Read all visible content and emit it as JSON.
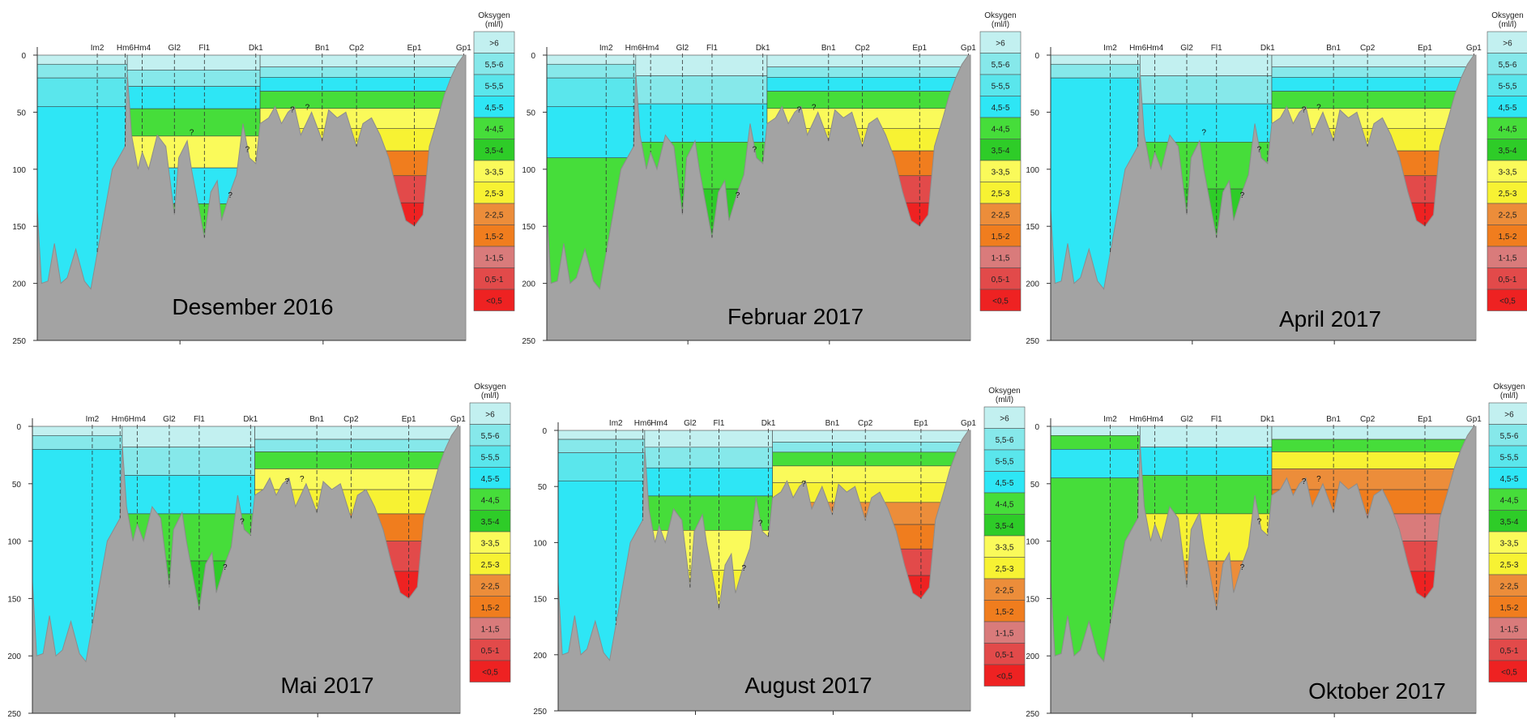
{
  "legend": {
    "title": "Oksygen",
    "unit": "(ml/l)",
    "classes": [
      {
        "label": ">6",
        "color": "#c2f0f0"
      },
      {
        "label": "5,5-6",
        "color": "#86e8ea"
      },
      {
        "label": "5-5,5",
        "color": "#5ae6ec"
      },
      {
        "label": "4,5-5",
        "color": "#2ee6f5"
      },
      {
        "label": "4-4,5",
        "color": "#46dd3a"
      },
      {
        "label": "3,5-4",
        "color": "#2ecc28"
      },
      {
        "label": "3-3,5",
        "color": "#fafa5a"
      },
      {
        "label": "2,5-3",
        "color": "#f7f233"
      },
      {
        "label": "2-2,5",
        "color": "#ec8d3a"
      },
      {
        "label": "1,5-2",
        "color": "#f07d1e"
      },
      {
        "label": "1-1,5",
        "color": "#d97b7b"
      },
      {
        "label": "0,5-1",
        "color": "#e24a4a"
      },
      {
        "label": "<0,5",
        "color": "#ee2222"
      }
    ]
  },
  "stations": [
    "Im2",
    "Hm6",
    "Hm4",
    "Gl2",
    "Fl1",
    "Dk1",
    "Bn1",
    "Cp2",
    "Ep1",
    "Gp1"
  ],
  "colors": {
    "terrain": "#a3a3a3",
    "axis": "#333333",
    "contour": "#333333"
  },
  "chart_data": [
    {
      "type": "heatmap",
      "title": "Desember 2016",
      "ylim": [
        250,
        0
      ],
      "yticks": [
        0,
        50,
        100,
        150,
        200,
        250
      ],
      "layers": [
        {
          "section": "Im2",
          "classes": [
            ">6",
            "5,5-6",
            "5-5,5",
            "4,5-5"
          ]
        },
        {
          "section": "Hm4-Dk1",
          "classes": [
            ">6",
            "5,5-6",
            "4,5-5",
            "4-4,5",
            "3-3,5",
            "4,5-5",
            "4-4,5"
          ]
        },
        {
          "section": "Dk1-Ep1",
          "classes": [
            ">6",
            "5,5-6",
            "4,5-5",
            "4-4,5",
            "3-3,5",
            "2,5-3",
            "1,5-2",
            "0,5-1",
            "<0,5"
          ]
        }
      ],
      "bottom_depth": {
        "Im2": 205,
        "Hm4": 95,
        "Gl2": 140,
        "Fl1": 160,
        "Dk1": 95,
        "Bn1": 75,
        "Cp2": 80,
        "Ep1": 150
      },
      "annotations": [
        "?",
        "?",
        "?",
        "?",
        "?"
      ]
    },
    {
      "type": "heatmap",
      "title": "Februar 2017",
      "ylim": [
        250,
        0
      ],
      "yticks": [
        0,
        50,
        100,
        150,
        200,
        250
      ],
      "layers": [
        {
          "section": "Im2",
          "classes": [
            ">6",
            "5,5-6",
            "5-5,5",
            "4,5-5",
            "4-4,5"
          ]
        },
        {
          "section": "Hm4-Dk1",
          "classes": [
            ">6",
            "5,5-6",
            "4,5-5",
            "4-4,5",
            "3,5-4"
          ]
        },
        {
          "section": "Dk1-Ep1",
          "classes": [
            ">6",
            "5,5-6",
            "4,5-5",
            "4-4,5",
            "3-3,5",
            "2,5-3",
            "1,5-2",
            "0,5-1",
            "<0,5"
          ]
        }
      ],
      "bottom_depth": {
        "Im2": 205,
        "Hm4": 100,
        "Gl2": 140,
        "Fl1": 160,
        "Dk1": 95,
        "Bn1": 75,
        "Cp2": 80,
        "Ep1": 150
      },
      "annotations": [
        "?",
        "?",
        "?",
        "?"
      ]
    },
    {
      "type": "heatmap",
      "title": "April 2017",
      "ylim": [
        250,
        0
      ],
      "yticks": [
        0,
        50,
        100,
        150,
        200,
        250
      ],
      "layers": [
        {
          "section": "Im2",
          "classes": [
            ">6",
            "5,5-6",
            "4,5-5"
          ]
        },
        {
          "section": "Hm4-Dk1",
          "classes": [
            ">6",
            "5,5-6",
            "4,5-5",
            "4-4,5",
            "3,5-4"
          ]
        },
        {
          "section": "Dk1-Ep1",
          "classes": [
            ">6",
            "5,5-6",
            "4,5-5",
            "4-4,5",
            "3-3,5",
            "2,5-3",
            "1,5-2",
            "0,5-1",
            "<0,5"
          ]
        }
      ],
      "bottom_depth": {
        "Im2": 205,
        "Hm4": 100,
        "Gl2": 140,
        "Fl1": 160,
        "Dk1": 95,
        "Bn1": 75,
        "Cp2": 80,
        "Ep1": 150
      },
      "annotations": [
        "?",
        "?",
        "?",
        "?",
        "?"
      ]
    },
    {
      "type": "heatmap",
      "title": "Mai 2017",
      "ylim": [
        250,
        0
      ],
      "yticks": [
        0,
        50,
        100,
        150,
        200,
        250
      ],
      "layers": [
        {
          "section": "Im2",
          "classes": [
            ">6",
            "5,5-6",
            "4,5-5"
          ]
        },
        {
          "section": "Hm4-Dk1",
          "classes": [
            ">6",
            "5,5-6",
            "4,5-5",
            "4-4,5",
            "3,5-4"
          ]
        },
        {
          "section": "Dk1-Ep1",
          "classes": [
            ">6",
            "5,5-6",
            "4-4,5",
            "3-3,5",
            "2,5-3",
            "1,5-2",
            "0,5-1",
            "<0,5"
          ]
        }
      ],
      "bottom_depth": {
        "Im2": 205,
        "Hm4": 100,
        "Gl2": 140,
        "Fl1": 160,
        "Dk1": 95,
        "Bn1": 75,
        "Cp2": 80,
        "Ep1": 150
      },
      "annotations": [
        "?",
        "?",
        "?",
        "?"
      ]
    },
    {
      "type": "heatmap",
      "title": "August 2017",
      "ylim": [
        250,
        0
      ],
      "yticks": [
        0,
        50,
        100,
        150,
        200,
        250
      ],
      "layers": [
        {
          "section": "Im2",
          "classes": [
            ">6",
            "5,5-6",
            "5-5,5",
            "4,5-5"
          ]
        },
        {
          "section": "Hm4-Dk1",
          "classes": [
            ">6",
            "5,5-6",
            "4,5-5",
            "4-4,5",
            "3-3,5",
            "2,5-3"
          ]
        },
        {
          "section": "Dk1-Ep1",
          "classes": [
            ">6",
            "5,5-6",
            "4-4,5",
            "3-3,5",
            "2,5-3",
            "2-2,5",
            "1,5-2",
            "0,5-1",
            "<0,5"
          ]
        }
      ],
      "bottom_depth": {
        "Im2": 205,
        "Hm4": 100,
        "Gl2": 140,
        "Fl1": 160,
        "Dk1": 95,
        "Bn1": 75,
        "Cp2": 80,
        "Ep1": 150
      },
      "annotations": [
        "?",
        "?",
        "?"
      ]
    },
    {
      "type": "heatmap",
      "title": "Oktober 2017",
      "ylim": [
        250,
        0
      ],
      "yticks": [
        0,
        50,
        100,
        150,
        200,
        250
      ],
      "layers": [
        {
          "section": "Im2",
          "classes": [
            ">6",
            "4-4,5",
            "4,5-5",
            "4-4,5"
          ]
        },
        {
          "section": "Hm4-Dk1",
          "classes": [
            ">6",
            "4,5-5",
            "4-4,5",
            "2,5-3",
            "2-2,5"
          ]
        },
        {
          "section": "Dk1-Ep1",
          "classes": [
            ">6",
            "4-4,5",
            "2,5-3",
            "2-2,5",
            "1,5-2",
            "1-1,5",
            "0,5-1",
            "<0,5"
          ]
        }
      ],
      "bottom_depth": {
        "Im2": 205,
        "Hm4": 100,
        "Gl2": 140,
        "Fl1": 160,
        "Dk1": 95,
        "Bn1": 75,
        "Cp2": 80,
        "Ep1": 150
      },
      "annotations": [
        "?",
        "?",
        "?",
        "?"
      ]
    }
  ]
}
